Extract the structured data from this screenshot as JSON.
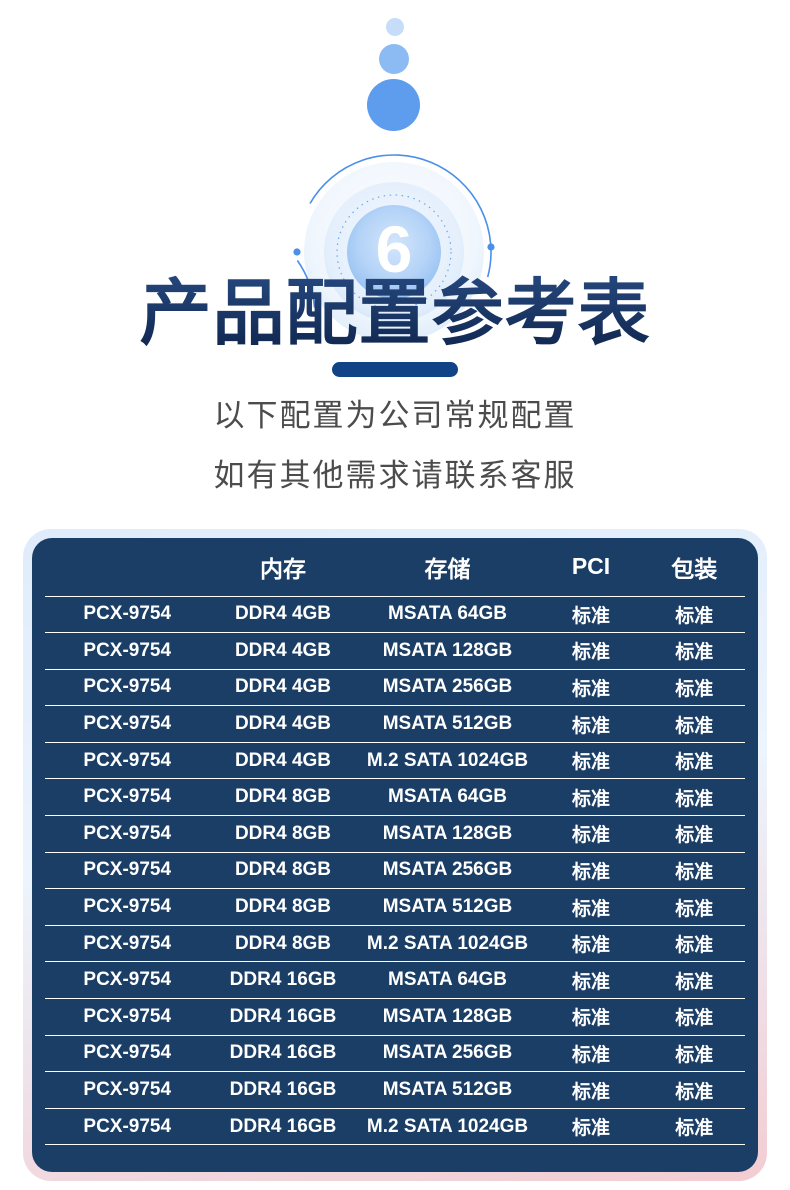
{
  "hero": {
    "step_number": "6",
    "title": "产品配置参考表",
    "subtitle_line1": "以下配置为公司常规配置",
    "subtitle_line2": "如有其他需求请联系客服"
  },
  "colors": {
    "accent_blue": "#4a8fe8",
    "table_bg": "#1b3e66",
    "divider_navy": "#114487",
    "glow_top": "#e0ecfb",
    "glow_bottom": "#f2cdd2",
    "subtitle_gray": "#4c4c4c"
  },
  "table": {
    "headers": [
      "",
      "内存",
      "存储",
      "PCI",
      "包装"
    ],
    "rows": [
      [
        "PCX-9754",
        "DDR4 4GB",
        "MSATA 64GB",
        "标准",
        "标准"
      ],
      [
        "PCX-9754",
        "DDR4 4GB",
        "MSATA 128GB",
        "标准",
        "标准"
      ],
      [
        "PCX-9754",
        "DDR4 4GB",
        "MSATA 256GB",
        "标准",
        "标准"
      ],
      [
        "PCX-9754",
        "DDR4 4GB",
        "MSATA 512GB",
        "标准",
        "标准"
      ],
      [
        "PCX-9754",
        "DDR4 4GB",
        "M.2 SATA 1024GB",
        "标准",
        "标准"
      ],
      [
        "PCX-9754",
        "DDR4 8GB",
        "MSATA 64GB",
        "标准",
        "标准"
      ],
      [
        "PCX-9754",
        "DDR4 8GB",
        "MSATA 128GB",
        "标准",
        "标准"
      ],
      [
        "PCX-9754",
        "DDR4 8GB",
        "MSATA 256GB",
        "标准",
        "标准"
      ],
      [
        "PCX-9754",
        "DDR4 8GB",
        "MSATA 512GB",
        "标准",
        "标准"
      ],
      [
        "PCX-9754",
        "DDR4 8GB",
        "M.2 SATA 1024GB",
        "标准",
        "标准"
      ],
      [
        "PCX-9754",
        "DDR4 16GB",
        "MSATA 64GB",
        "标准",
        "标准"
      ],
      [
        "PCX-9754",
        "DDR4 16GB",
        "MSATA 128GB",
        "标准",
        "标准"
      ],
      [
        "PCX-9754",
        "DDR4 16GB",
        "MSATA 256GB",
        "标准",
        "标准"
      ],
      [
        "PCX-9754",
        "DDR4 16GB",
        "MSATA 512GB",
        "标准",
        "标准"
      ],
      [
        "PCX-9754",
        "DDR4 16GB",
        "M.2 SATA 1024GB",
        "标准",
        "标准"
      ]
    ],
    "cell_names": [
      "cell-model",
      "cell-memory",
      "cell-storage",
      "cell-pci",
      "cell-packaging"
    ],
    "header_names": [
      "column-header-model",
      "column-header-memory",
      "column-header-storage",
      "column-header-pci",
      "column-header-packaging"
    ]
  }
}
